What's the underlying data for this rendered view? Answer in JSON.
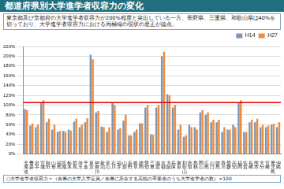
{
  "chart_data": {
    "type": "bar",
    "title": "都道府県別大学進学者収容力の変化",
    "annotations": [
      "東京都及び京都府の大学進学者収容力が200%程度と突出している一方、長野県、三重県、和歌山県は40%を切っており、大学進学者収容力における両極端の現状の是正が論点。",
      "○大学進学者収容力＝（各県の大学入学定員／各県に所在する高校の卒業者のうち大学進学者の数）×100"
    ],
    "categories": [
      "北海道",
      "青森",
      "岩手",
      "宮城",
      "秋田",
      "山形",
      "福島",
      "茨城",
      "栃木",
      "群馬",
      "埼玉",
      "千葉",
      "東京",
      "神奈川",
      "新潟",
      "富山",
      "石川",
      "福井",
      "山梨",
      "長野",
      "岐阜",
      "静岡",
      "愛知",
      "三重",
      "滋賀",
      "京都",
      "大阪",
      "兵庫",
      "奈良",
      "和歌山",
      "鳥取",
      "島根",
      "岡山",
      "広島",
      "山口",
      "徳島",
      "香川",
      "愛媛",
      "高知",
      "福岡",
      "佐賀",
      "長崎",
      "熊本",
      "大分",
      "宮崎",
      "鹿児島",
      "沖縄"
    ],
    "series": [
      {
        "name": "H14",
        "color": "#7f97b2",
        "values": [
          92,
          58,
          55,
          105,
          65,
          50,
          45,
          47,
          50,
          66,
          55,
          65,
          203,
          85,
          56,
          45,
          105,
          50,
          68,
          38,
          45,
          63,
          95,
          40,
          95,
          200,
          122,
          95,
          50,
          35,
          60,
          55,
          85,
          80,
          65,
          65,
          45,
          50,
          60,
          105,
          45,
          65,
          65,
          55,
          55,
          60,
          55
        ]
      },
      {
        "name": "H27",
        "color": "#f08c3c",
        "values": [
          90,
          62,
          60,
          110,
          72,
          60,
          47,
          46,
          48,
          72,
          60,
          73,
          194,
          88,
          55,
          55,
          100,
          53,
          80,
          38,
          50,
          63,
          100,
          39,
          100,
          209,
          120,
          100,
          60,
          38,
          55,
          50,
          90,
          85,
          70,
          70,
          55,
          50,
          55,
          110,
          45,
          70,
          72,
          60,
          58,
          62,
          65
        ]
      }
    ],
    "reference_line": {
      "value": 105,
      "color": "#e00000"
    },
    "ylim": [
      0,
      220
    ],
    "yticks": [
      {
        "value": 0,
        "label": "0%"
      },
      {
        "value": 20,
        "label": "20%"
      },
      {
        "value": 40,
        "label": "40%"
      },
      {
        "value": 60,
        "label": "60%"
      },
      {
        "value": 80,
        "label": "80%"
      },
      {
        "value": 100,
        "label": "100%"
      },
      {
        "value": 120,
        "label": "120%"
      },
      {
        "value": 140,
        "label": "140%"
      },
      {
        "value": 160,
        "label": "160%"
      },
      {
        "value": 180,
        "label": "180%"
      },
      {
        "value": 200,
        "label": "200%"
      },
      {
        "value": 220,
        "label": "220%"
      }
    ],
    "grid": true,
    "legend": "top-right"
  }
}
